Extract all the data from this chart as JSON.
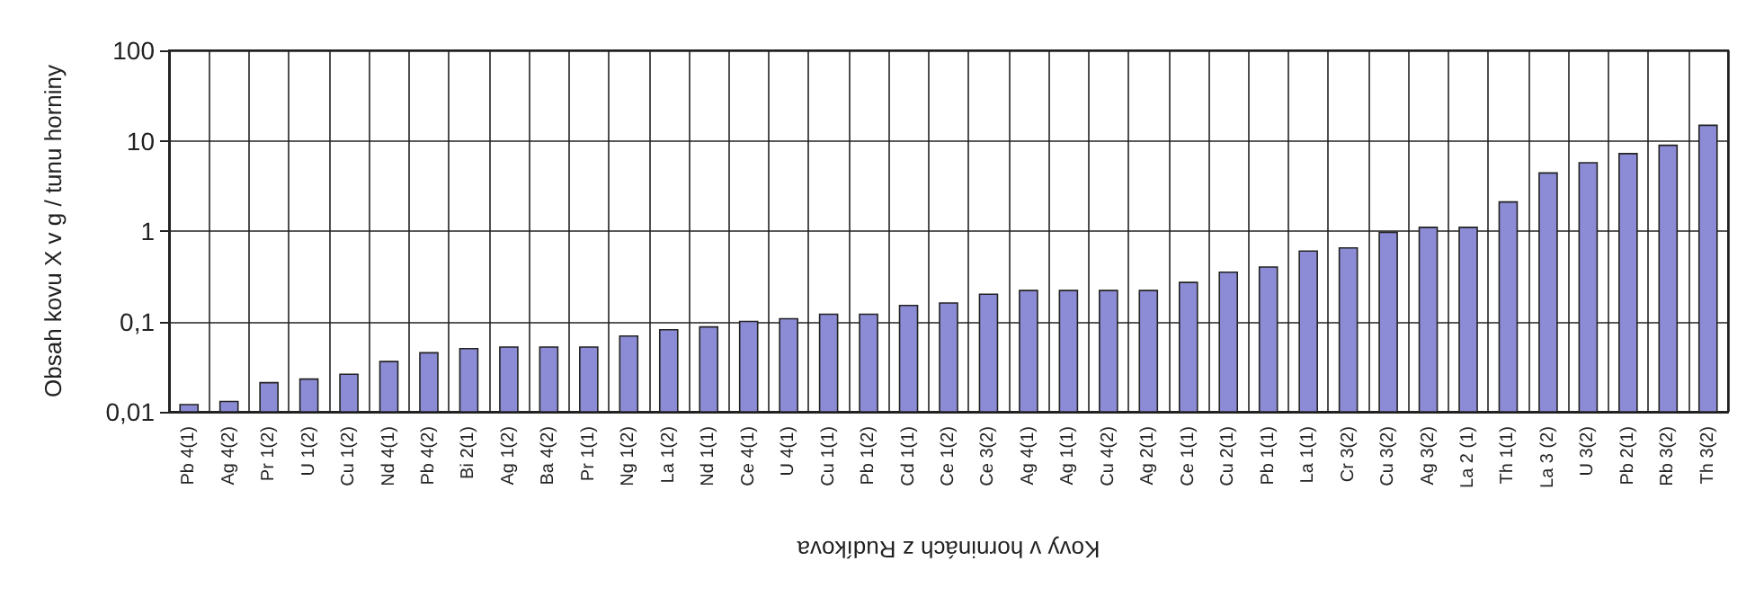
{
  "chart_data": {
    "type": "bar",
    "xlabel": "Kovy v horninách z Rudíkova",
    "ylabel": "Obsah kovu X v g / tunu horniny",
    "categories": [
      "Pb 4(1)",
      "Ag 4(2)",
      "Pr 1(2)",
      "U 1(2)",
      "Cu 1(2)",
      "Nd 4(1)",
      "Pb 4(2)",
      "Bi 2(1)",
      "Ag 1(2)",
      "Ba 4(2)",
      "Pr 1(1)",
      "Ng 1(2)",
      "La 1(2)",
      "Nd 1(1)",
      "Ce 4(1)",
      "U 4(1)",
      "Cu 1(1)",
      "Pb 1(2)",
      "Cd 1(1)",
      "Ce 1(2)",
      "Ce 3(2)",
      "Ag 4(1)",
      "Ag 1(1)",
      "Cu 4(2)",
      "Ag 2(1)",
      "Ce 1(1)",
      "Cu 2(1)",
      "Pb 1(1)",
      "La 1(1)",
      "Cr 3(2)",
      "Cu 3(2)",
      "Ag 3(2)",
      "La 2 (1)",
      "Th 1(1)",
      "La 3 (2)",
      "U 3(2)",
      "Pb 2(1)",
      "Rb 3(2)",
      "Th 3(2)"
    ],
    "values": [
      0.012,
      0.013,
      0.021,
      0.023,
      0.026,
      0.036,
      0.045,
      0.05,
      0.052,
      0.052,
      0.052,
      0.069,
      0.081,
      0.087,
      0.1,
      0.107,
      0.12,
      0.12,
      0.15,
      0.16,
      0.2,
      0.22,
      0.22,
      0.22,
      0.22,
      0.27,
      0.35,
      0.4,
      0.6,
      0.65,
      0.97,
      1.1,
      1.1,
      2.1,
      4.4,
      5.7,
      7.2,
      8.9,
      14.8
    ],
    "color": "#8c8cd6",
    "log": "y",
    "ylim": [
      0.01,
      100
    ],
    "yticks": [
      {
        "value": 0.01,
        "label": "0,01"
      },
      {
        "value": 0.1,
        "label": "0,1"
      },
      1,
      10,
      100
    ],
    "grid": true
  }
}
